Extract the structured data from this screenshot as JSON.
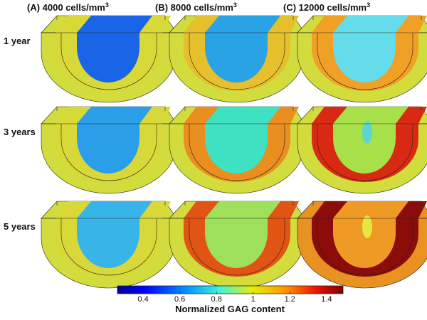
{
  "figure": {
    "columns": [
      {
        "label": "(A) 4000 cells/mm",
        "sup": "3"
      },
      {
        "label": "(B) 8000 cells/mm",
        "sup": "3"
      },
      {
        "label": "(C) 12000 cells/mm",
        "sup": "3"
      }
    ],
    "rows": [
      "1 year",
      "3 years",
      "5 years"
    ],
    "colorbar": {
      "label": "Normalized GAG content",
      "lim": [
        0.26,
        1.49
      ],
      "ticks": [
        0.4,
        0.6,
        0.8,
        1,
        1.2,
        1.4
      ]
    }
  }
}
